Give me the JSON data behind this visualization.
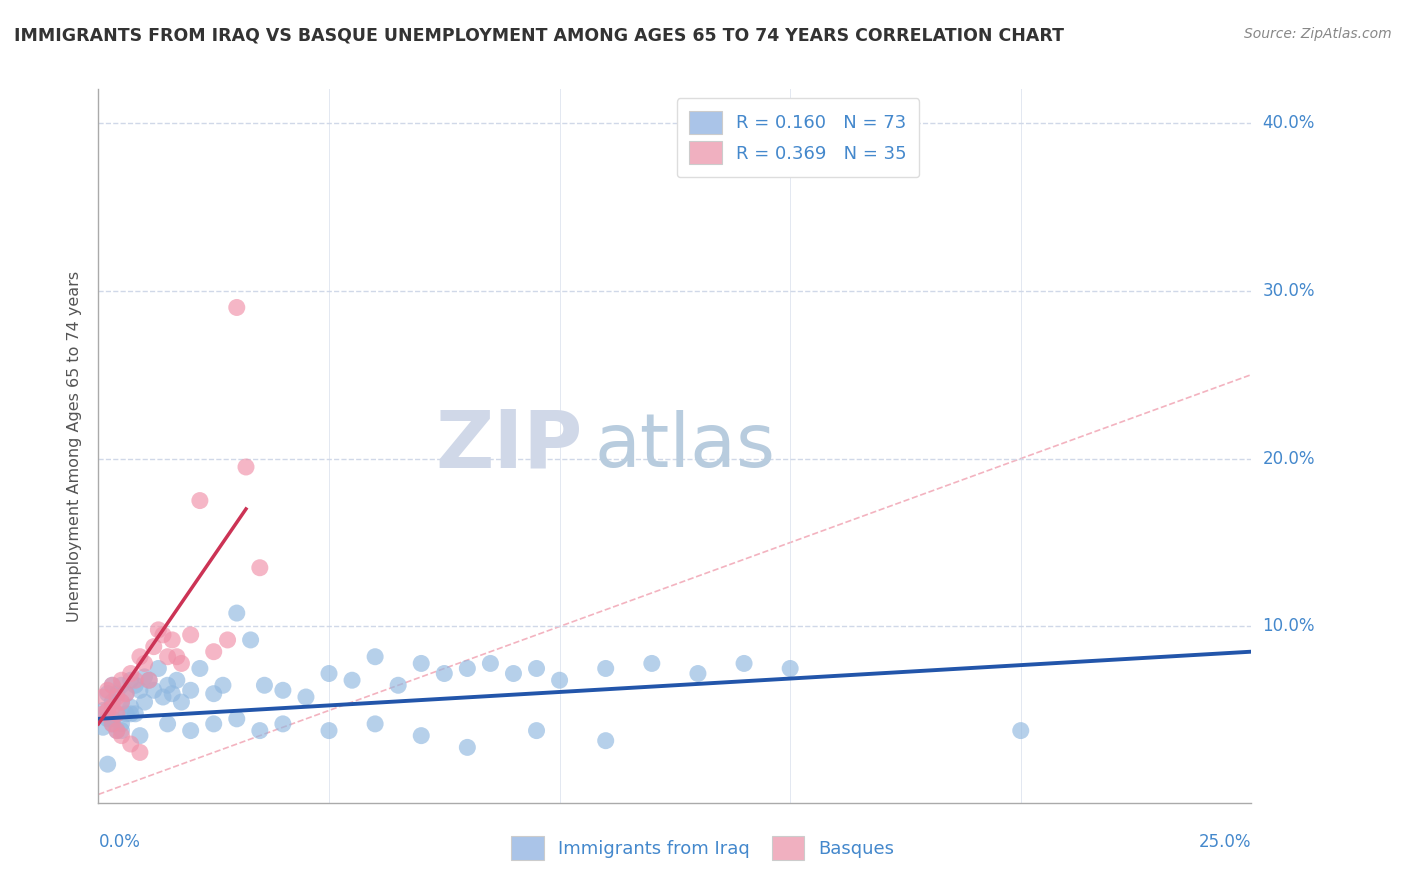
{
  "title": "IMMIGRANTS FROM IRAQ VS BASQUE UNEMPLOYMENT AMONG AGES 65 TO 74 YEARS CORRELATION CHART",
  "source": "Source: ZipAtlas.com",
  "ylabel": "Unemployment Among Ages 65 to 74 years",
  "xlim": [
    0.0,
    0.25
  ],
  "ylim": [
    -0.005,
    0.42
  ],
  "xticks": [
    0.0,
    0.05,
    0.1,
    0.15,
    0.2,
    0.25
  ],
  "yticks": [
    0.0,
    0.1,
    0.2,
    0.3,
    0.4
  ],
  "legend_blue_r": "R = 0.160",
  "legend_blue_n": "N = 73",
  "legend_pink_r": "R = 0.369",
  "legend_pink_n": "N = 35",
  "legend_blue_color": "#aac4e8",
  "legend_pink_color": "#f0b0c0",
  "scatter_blue_color": "#90b8e0",
  "scatter_pink_color": "#f090a8",
  "trendline_blue_color": "#2255aa",
  "trendline_pink_color": "#cc3355",
  "diagonal_color": "#f0a0b0",
  "watermark_zip_color": "#d0d8e8",
  "watermark_atlas_color": "#b8ccde",
  "title_color": "#333333",
  "axis_label_color": "#4488cc",
  "grid_color": "#d0d8e8",
  "ylabel_color": "#555555",
  "blue_scatter_x": [
    0.001,
    0.001,
    0.002,
    0.002,
    0.003,
    0.003,
    0.003,
    0.004,
    0.004,
    0.004,
    0.005,
    0.005,
    0.005,
    0.006,
    0.006,
    0.007,
    0.007,
    0.008,
    0.008,
    0.009,
    0.01,
    0.01,
    0.011,
    0.012,
    0.013,
    0.014,
    0.015,
    0.016,
    0.017,
    0.018,
    0.02,
    0.022,
    0.025,
    0.027,
    0.03,
    0.033,
    0.036,
    0.04,
    0.045,
    0.05,
    0.055,
    0.06,
    0.065,
    0.07,
    0.075,
    0.08,
    0.085,
    0.09,
    0.095,
    0.1,
    0.11,
    0.12,
    0.13,
    0.14,
    0.15,
    0.003,
    0.005,
    0.007,
    0.009,
    0.015,
    0.02,
    0.025,
    0.03,
    0.035,
    0.04,
    0.05,
    0.06,
    0.07,
    0.08,
    0.095,
    0.11,
    0.2,
    0.002
  ],
  "blue_scatter_y": [
    0.05,
    0.04,
    0.06,
    0.045,
    0.065,
    0.055,
    0.042,
    0.06,
    0.048,
    0.038,
    0.065,
    0.055,
    0.038,
    0.06,
    0.048,
    0.068,
    0.052,
    0.065,
    0.048,
    0.062,
    0.07,
    0.055,
    0.068,
    0.062,
    0.075,
    0.058,
    0.065,
    0.06,
    0.068,
    0.055,
    0.062,
    0.075,
    0.06,
    0.065,
    0.108,
    0.092,
    0.065,
    0.062,
    0.058,
    0.072,
    0.068,
    0.082,
    0.065,
    0.078,
    0.072,
    0.075,
    0.078,
    0.072,
    0.075,
    0.068,
    0.075,
    0.078,
    0.072,
    0.078,
    0.075,
    0.045,
    0.042,
    0.048,
    0.035,
    0.042,
    0.038,
    0.042,
    0.045,
    0.038,
    0.042,
    0.038,
    0.042,
    0.035,
    0.028,
    0.038,
    0.032,
    0.038,
    0.018
  ],
  "pink_scatter_x": [
    0.001,
    0.001,
    0.002,
    0.002,
    0.003,
    0.003,
    0.004,
    0.004,
    0.005,
    0.005,
    0.006,
    0.007,
    0.008,
    0.009,
    0.01,
    0.011,
    0.012,
    0.013,
    0.014,
    0.015,
    0.016,
    0.017,
    0.018,
    0.02,
    0.022,
    0.025,
    0.028,
    0.03,
    0.032,
    0.035,
    0.003,
    0.004,
    0.005,
    0.007,
    0.009
  ],
  "pink_scatter_y": [
    0.058,
    0.048,
    0.062,
    0.05,
    0.065,
    0.052,
    0.058,
    0.048,
    0.068,
    0.055,
    0.06,
    0.072,
    0.068,
    0.082,
    0.078,
    0.068,
    0.088,
    0.098,
    0.095,
    0.082,
    0.092,
    0.082,
    0.078,
    0.095,
    0.175,
    0.085,
    0.092,
    0.29,
    0.195,
    0.135,
    0.042,
    0.038,
    0.035,
    0.03,
    0.025
  ],
  "blue_trend_x": [
    0.0,
    0.25
  ],
  "blue_trend_y": [
    0.045,
    0.085
  ],
  "pink_trend_x": [
    0.0,
    0.032
  ],
  "pink_trend_y": [
    0.042,
    0.17
  ]
}
